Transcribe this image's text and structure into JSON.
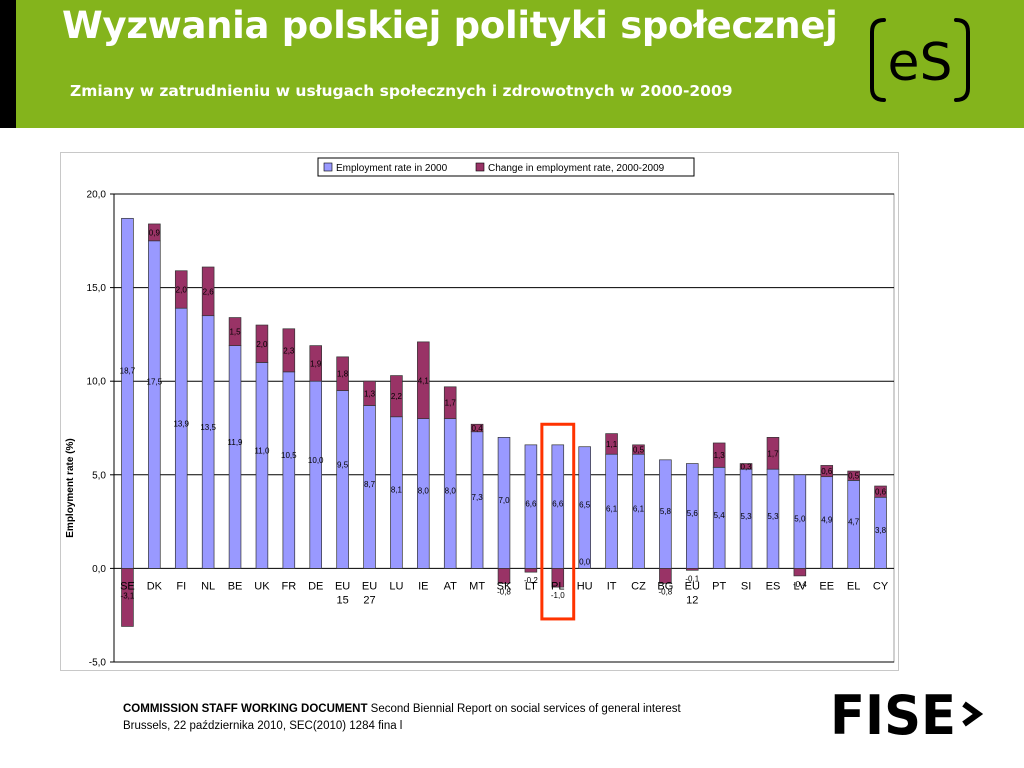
{
  "slide": {
    "title": "Wyzwania polskiej polityki społecznej",
    "subtitle": "Zmiany w zatrudnieniu w usługach społecznych i zdrowotnych w 2000-2009",
    "header_color": "#84b41c",
    "logo_es": "eS",
    "logo_fise": "FISE",
    "footer_line1_bold": "COMMISSION STAFF WORKING DOCUMENT",
    "footer_line1_rest": " Second Biennial Report on social services of general interest",
    "footer_line2": "Brussels, 22 października 2010, SEC(2010) 1284 fina l"
  },
  "chart_data": {
    "type": "bar",
    "stacked": true,
    "title": "",
    "xlabel": "",
    "ylabel": "Employment rate (%)",
    "ylim": [
      -5.0,
      20.0
    ],
    "yticks": [
      "-5,0",
      "0,0",
      "5,0",
      "10,0",
      "15,0",
      "20,0"
    ],
    "grid": true,
    "legend_position": "top",
    "categories": [
      "SE",
      "DK",
      "FI",
      "NL",
      "BE",
      "UK",
      "FR",
      "DE",
      "EU 15",
      "EU 27",
      "LU",
      "IE",
      "AT",
      "MT",
      "SK",
      "LT",
      "PL",
      "HU",
      "IT",
      "CZ",
      "BG",
      "EU 12",
      "PT",
      "SI",
      "ES",
      "LV",
      "EE",
      "EL",
      "CY"
    ],
    "series": [
      {
        "name": "Employment rate in 2000",
        "color": "#9999ff",
        "values": [
          18.7,
          17.5,
          13.9,
          13.5,
          11.9,
          11.0,
          10.5,
          10.0,
          9.5,
          8.7,
          8.1,
          8.0,
          8.0,
          7.3,
          7.0,
          6.6,
          6.6,
          6.5,
          6.1,
          6.1,
          5.8,
          5.6,
          5.4,
          5.3,
          5.3,
          5.0,
          4.9,
          4.7,
          3.8
        ],
        "labels": [
          "18,7",
          "17,5",
          "13,9",
          "13,5",
          "11,9",
          "11,0",
          "10,5",
          "10,0",
          "9,5",
          "8,7",
          "8,1",
          "8,0",
          "8,0",
          "7,3",
          "7,0",
          "6,6",
          "6,6",
          "6,5",
          "6,1",
          "6,1",
          "5,8",
          "5,6",
          "5,4",
          "5,3",
          "5,3",
          "5,0",
          "4,9",
          "4,7",
          "3,8"
        ]
      },
      {
        "name": "Change in employment rate, 2000-2009",
        "color": "#993366",
        "values": [
          -3.1,
          0.9,
          2.0,
          2.6,
          1.5,
          2.0,
          2.3,
          1.9,
          1.8,
          1.3,
          2.2,
          4.1,
          1.7,
          0.4,
          -0.8,
          -0.2,
          -1.0,
          0.0,
          1.1,
          0.5,
          -0.8,
          -0.1,
          1.3,
          0.3,
          1.7,
          -0.4,
          0.6,
          0.5,
          0.6
        ],
        "labels": [
          "-3,1",
          "0,9",
          "2,0",
          "2,6",
          "1,5",
          "2,0",
          "2,3",
          "1,9",
          "1,8",
          "1,3",
          "2,2",
          "4,1",
          "1,7",
          "0,4",
          "-0,8",
          "-0,2",
          "-1,0",
          "0,0",
          "1,1",
          "0,5",
          "-0,8",
          "-0,1",
          "1,3",
          "0,3",
          "1,7",
          "-0,4",
          "0,6",
          "0,5",
          "0,6"
        ]
      }
    ],
    "highlight_category": "PL",
    "highlight_color": "#ff3300"
  }
}
